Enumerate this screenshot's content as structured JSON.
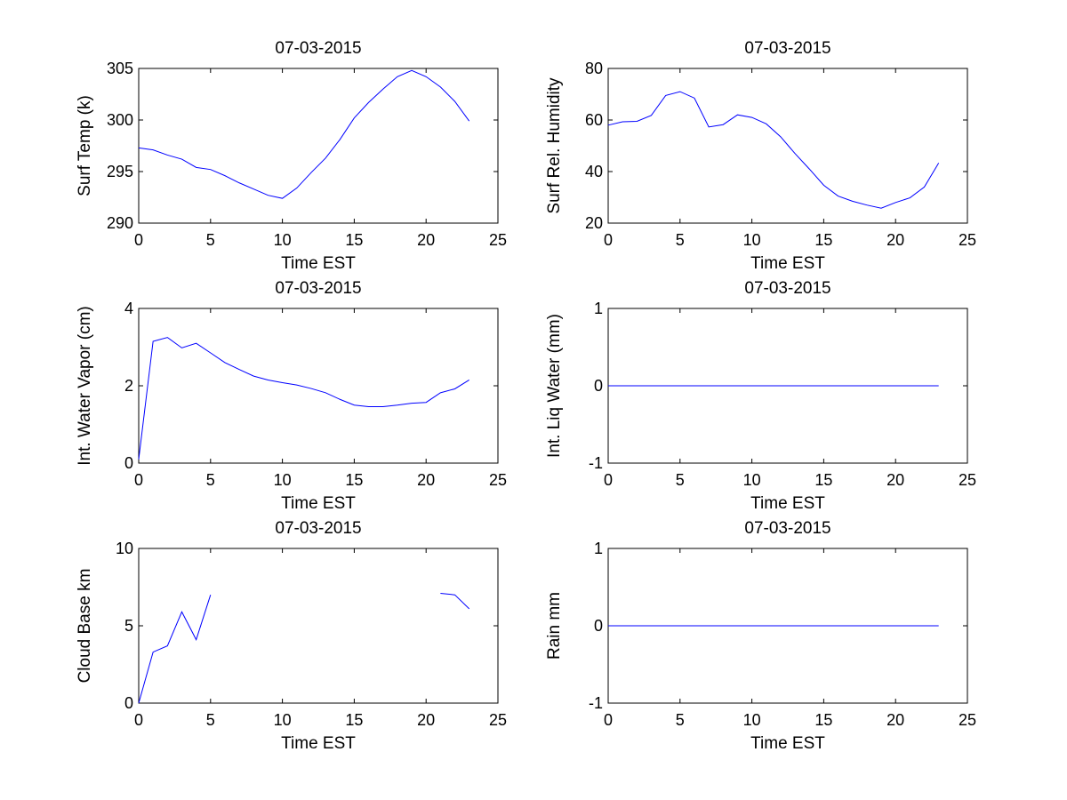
{
  "chart_data": [
    {
      "type": "line",
      "title": "07-03-2015",
      "xlabel": "Time EST",
      "ylabel": "Surf Temp (k)",
      "xlim": [
        0,
        25
      ],
      "ylim": [
        290,
        305
      ],
      "xticks": [
        "0",
        "5",
        "10",
        "15",
        "20",
        "25"
      ],
      "yticks": [
        "290",
        "295",
        "300",
        "305"
      ],
      "grid": false,
      "line_color": "#0000ff",
      "x": [
        0,
        1,
        2,
        3,
        4,
        5,
        6,
        7,
        8,
        9,
        10,
        11,
        12,
        13,
        14,
        15,
        16,
        17,
        18,
        19,
        20,
        21,
        22,
        23
      ],
      "y": [
        297.3,
        297.1,
        296.6,
        296.2,
        295.4,
        295.2,
        294.6,
        293.9,
        293.3,
        292.7,
        292.4,
        293.4,
        294.9,
        296.3,
        298.1,
        300.2,
        301.7,
        303.0,
        304.2,
        304.8,
        304.2,
        303.2,
        301.8,
        299.9
      ]
    },
    {
      "type": "line",
      "title": "07-03-2015",
      "xlabel": "Time EST",
      "ylabel": "Surf Rel. Humidity",
      "xlim": [
        0,
        25
      ],
      "ylim": [
        20,
        80
      ],
      "xticks": [
        "0",
        "5",
        "10",
        "15",
        "20",
        "25"
      ],
      "yticks": [
        "20",
        "40",
        "60",
        "80"
      ],
      "grid": false,
      "line_color": "#0000ff",
      "x": [
        0,
        1,
        2,
        3,
        4,
        5,
        6,
        7,
        8,
        9,
        10,
        11,
        12,
        13,
        14,
        15,
        16,
        17,
        18,
        19,
        20,
        21,
        22,
        23
      ],
      "y": [
        58.0,
        59.3,
        59.5,
        61.8,
        69.5,
        71.0,
        68.5,
        57.3,
        58.2,
        62.0,
        61.0,
        58.5,
        53.5,
        47.0,
        41.0,
        34.7,
        30.5,
        28.5,
        27.0,
        25.8,
        28.0,
        29.8,
        34.0,
        43.3
      ]
    },
    {
      "type": "line",
      "title": "07-03-2015",
      "xlabel": "Time EST",
      "ylabel": "Int. Water Vapor (cm)",
      "xlim": [
        0,
        25
      ],
      "ylim": [
        0,
        4
      ],
      "xticks": [
        "0",
        "5",
        "10",
        "15",
        "20",
        "25"
      ],
      "yticks": [
        "0",
        "2",
        "4"
      ],
      "grid": false,
      "line_color": "#0000ff",
      "x": [
        0,
        1,
        2,
        3,
        4,
        5,
        6,
        7,
        8,
        9,
        10,
        11,
        12,
        13,
        14,
        15,
        16,
        17,
        18,
        19,
        20,
        21,
        22,
        23
      ],
      "y": [
        0.1,
        3.15,
        3.25,
        2.98,
        3.1,
        2.85,
        2.6,
        2.42,
        2.25,
        2.15,
        2.08,
        2.02,
        1.93,
        1.82,
        1.65,
        1.5,
        1.46,
        1.46,
        1.5,
        1.55,
        1.57,
        1.82,
        1.92,
        2.15
      ]
    },
    {
      "type": "line",
      "title": "07-03-2015",
      "xlabel": "Time EST",
      "ylabel": "Int. Liq Water (mm)",
      "xlim": [
        0,
        25
      ],
      "ylim": [
        -1,
        1
      ],
      "xticks": [
        "0",
        "5",
        "10",
        "15",
        "20",
        "25"
      ],
      "yticks": [
        "-1",
        "0",
        "1"
      ],
      "grid": false,
      "line_color": "#0000ff",
      "x": [
        0,
        1,
        2,
        3,
        4,
        5,
        6,
        7,
        8,
        9,
        10,
        11,
        12,
        13,
        14,
        15,
        16,
        17,
        18,
        19,
        20,
        21,
        22,
        23
      ],
      "y": [
        0,
        0,
        0,
        0,
        0,
        0,
        0,
        0,
        0,
        0,
        0,
        0,
        0,
        0,
        0,
        0,
        0,
        0,
        0,
        0,
        0,
        0,
        0,
        0
      ]
    },
    {
      "type": "line",
      "title": "07-03-2015",
      "xlabel": "Time EST",
      "ylabel": "Cloud Base km",
      "xlim": [
        0,
        25
      ],
      "ylim": [
        0,
        10
      ],
      "xticks": [
        "0",
        "5",
        "10",
        "15",
        "20",
        "25"
      ],
      "yticks": [
        "0",
        "5",
        "10"
      ],
      "grid": false,
      "line_color": "#0000ff",
      "x": [
        0,
        1,
        2,
        3,
        4,
        5,
        6,
        7,
        8,
        9,
        10,
        11,
        12,
        13,
        14,
        15,
        16,
        17,
        18,
        19,
        20,
        21,
        22,
        23
      ],
      "y": [
        0,
        3.3,
        3.7,
        5.9,
        4.1,
        7.0,
        null,
        null,
        null,
        null,
        null,
        null,
        null,
        null,
        null,
        null,
        null,
        null,
        null,
        null,
        null,
        7.1,
        7.0,
        6.1
      ]
    },
    {
      "type": "line",
      "title": "07-03-2015",
      "xlabel": "Time EST",
      "ylabel": "Rain mm",
      "xlim": [
        0,
        25
      ],
      "ylim": [
        -1,
        1
      ],
      "xticks": [
        "0",
        "5",
        "10",
        "15",
        "20",
        "25"
      ],
      "yticks": [
        "-1",
        "0",
        "1"
      ],
      "grid": false,
      "line_color": "#0000ff",
      "x": [
        0,
        1,
        2,
        3,
        4,
        5,
        6,
        7,
        8,
        9,
        10,
        11,
        12,
        13,
        14,
        15,
        16,
        17,
        18,
        19,
        20,
        21,
        22,
        23
      ],
      "y": [
        0,
        0,
        0,
        0,
        0,
        0,
        0,
        0,
        0,
        0,
        0,
        0,
        0,
        0,
        0,
        0,
        0,
        0,
        0,
        0,
        0,
        0,
        0,
        0
      ]
    }
  ]
}
